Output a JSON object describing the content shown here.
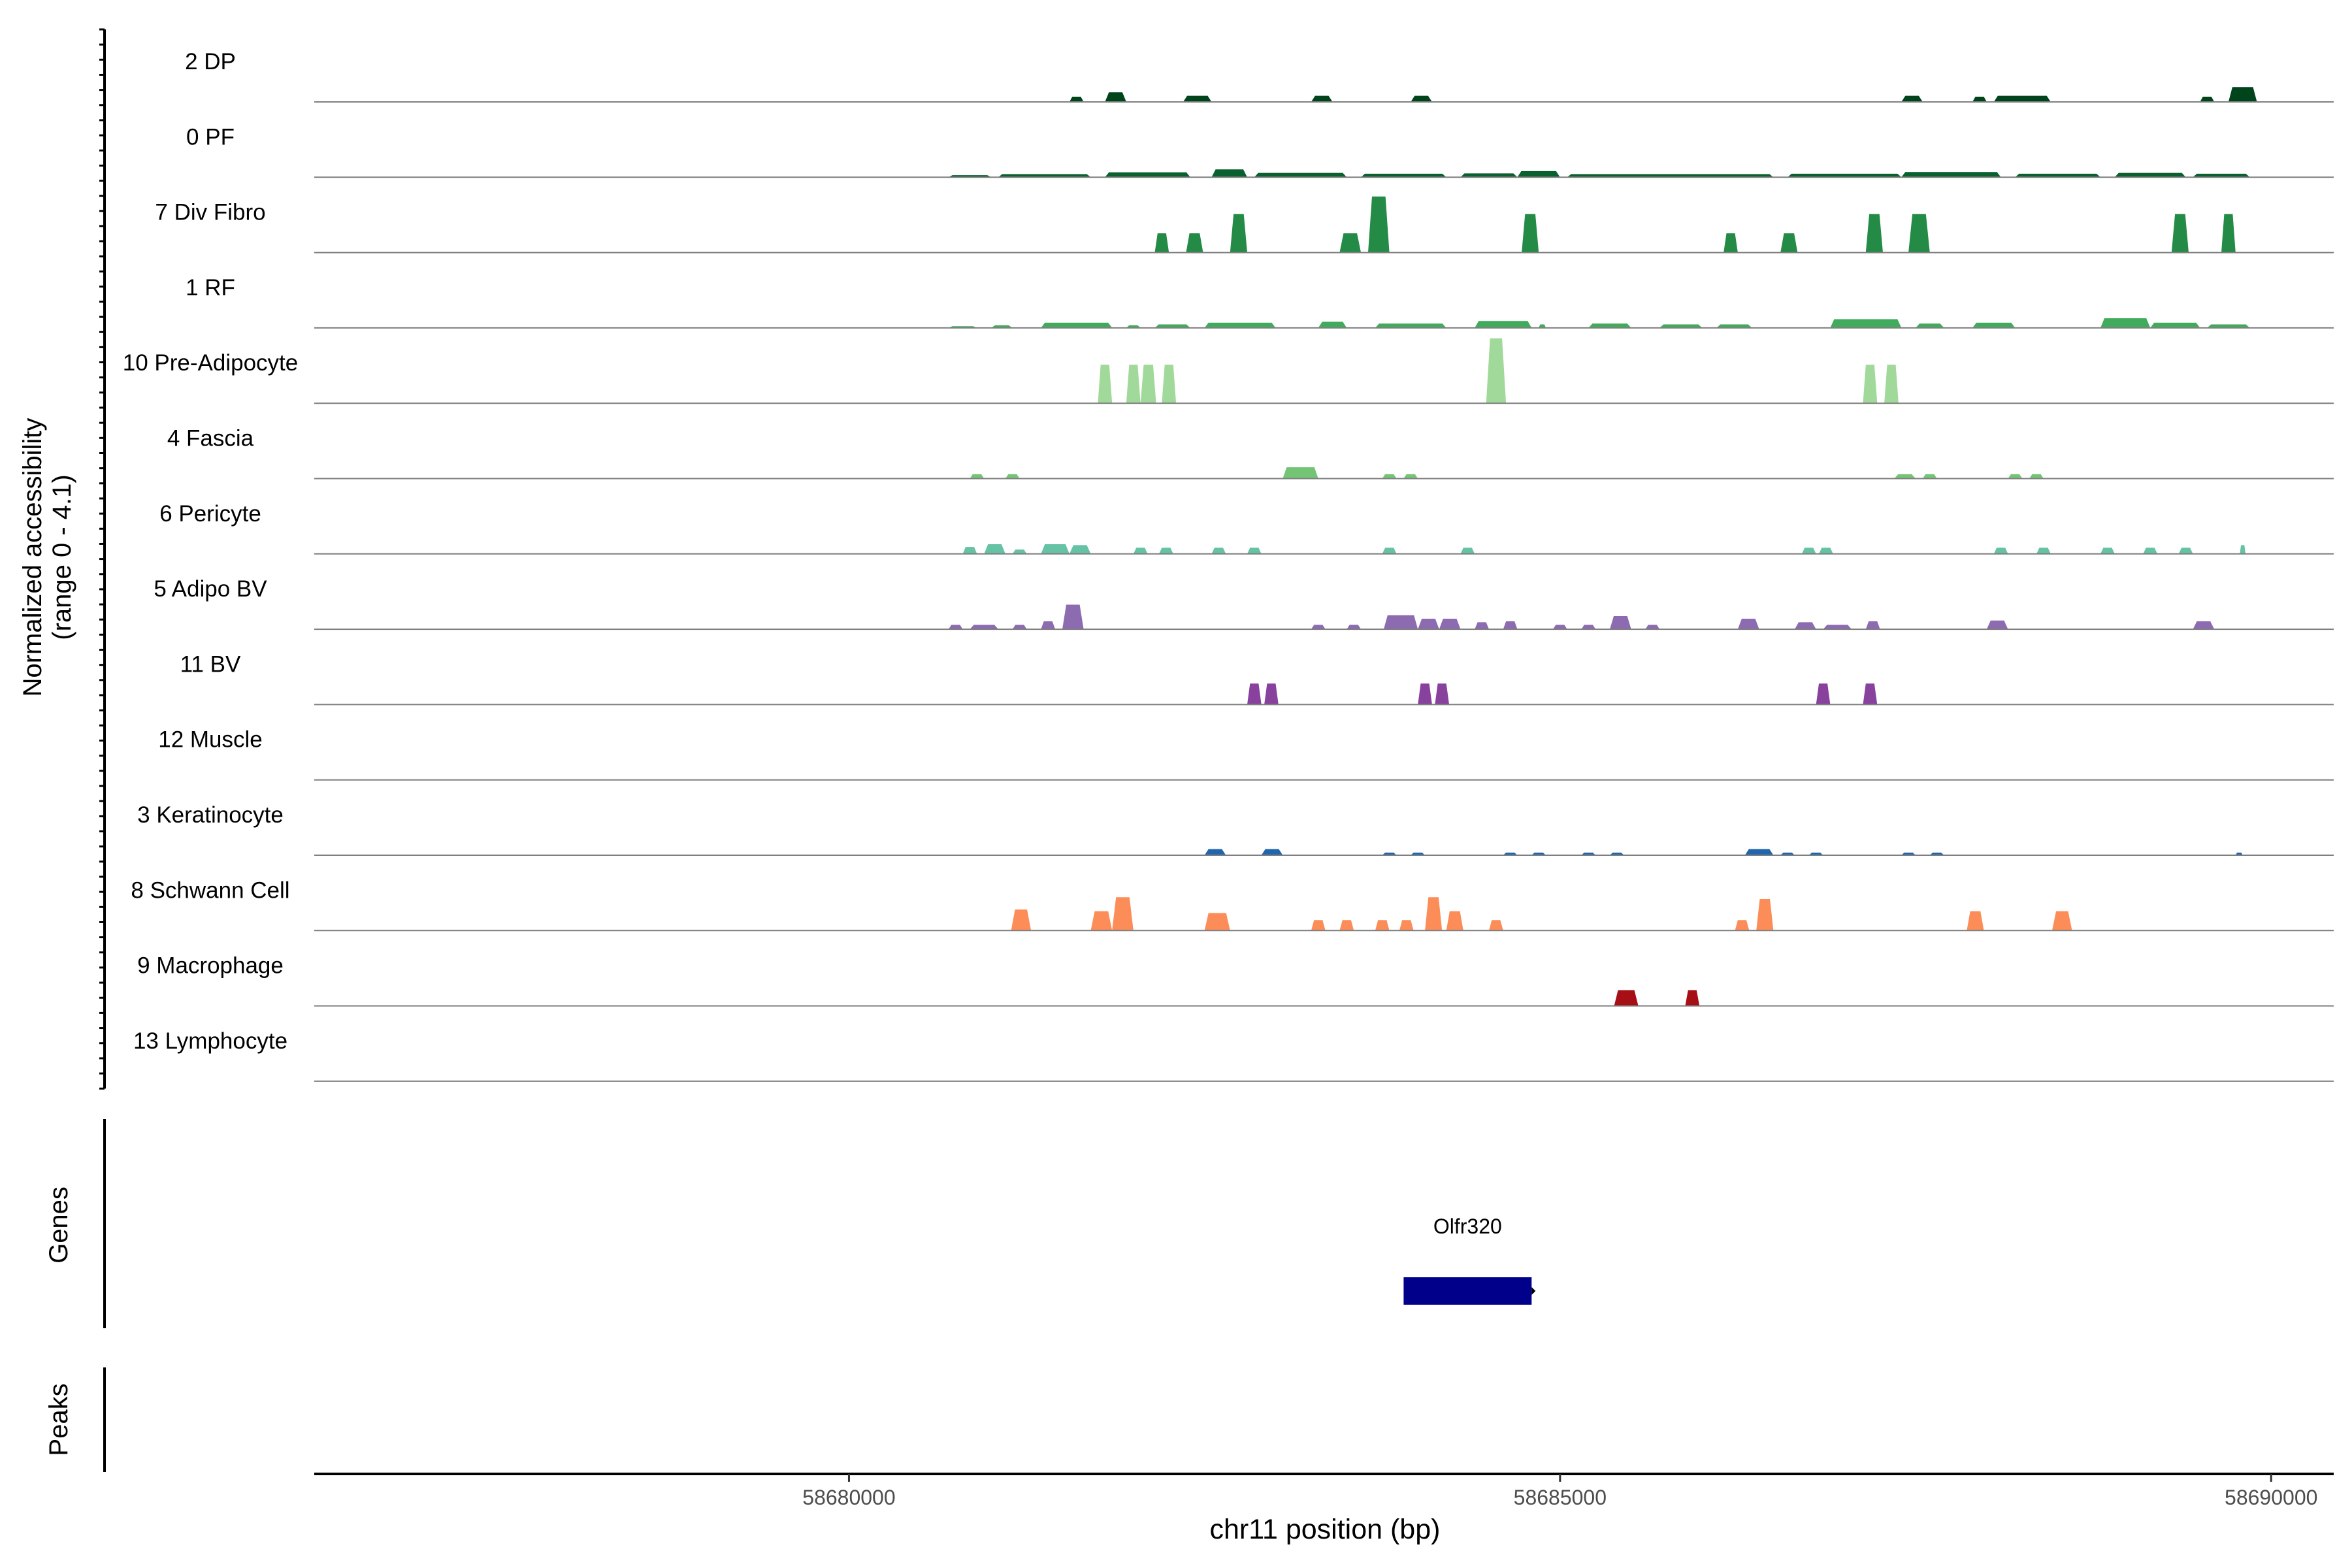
{
  "chart_data": {
    "type": "area",
    "panel_label": "Normalized accessibility",
    "panel_sublabel": "(range 0 - 4.1)",
    "ylim": [
      0,
      4.1
    ],
    "xlabel": "chr11 position (bp)",
    "xlim": [
      58676240,
      58690440
    ],
    "xticks": [
      {
        "value": 58680000,
        "label": "58680000"
      },
      {
        "value": 58685000,
        "label": "58685000"
      },
      {
        "value": 58690000,
        "label": "58690000"
      }
    ],
    "tracks": [
      {
        "name": "2 DP",
        "color": "#00441b",
        "peaks": [
          [
            58681550,
            58681650,
            0.3
          ],
          [
            58681800,
            58681950,
            0.55
          ],
          [
            58682350,
            58682550,
            0.35
          ],
          [
            58683250,
            58683400,
            0.35
          ],
          [
            58683950,
            58684100,
            0.35
          ],
          [
            58687400,
            58687550,
            0.35
          ],
          [
            58687900,
            58688000,
            0.3
          ],
          [
            58688050,
            58688450,
            0.35
          ],
          [
            58689500,
            58689600,
            0.3
          ],
          [
            58689700,
            58689900,
            0.85
          ]
        ]
      },
      {
        "name": "0 PF",
        "color": "#0a6130",
        "peaks": [
          [
            58680700,
            58681000,
            0.12
          ],
          [
            58681050,
            58681700,
            0.18
          ],
          [
            58681800,
            58682400,
            0.28
          ],
          [
            58682550,
            58682800,
            0.45
          ],
          [
            58682850,
            58683500,
            0.25
          ],
          [
            58683600,
            58684200,
            0.2
          ],
          [
            58684300,
            58684700,
            0.22
          ],
          [
            58684700,
            58685000,
            0.35
          ],
          [
            58685050,
            58686500,
            0.18
          ],
          [
            58686600,
            58687400,
            0.2
          ],
          [
            58687400,
            58688100,
            0.3
          ],
          [
            58688200,
            58688800,
            0.2
          ],
          [
            58688900,
            58689400,
            0.25
          ],
          [
            58689450,
            58689850,
            0.2
          ]
        ]
      },
      {
        "name": "7 Div Fibro",
        "color": "#238b45",
        "peaks": [
          [
            58682150,
            58682250,
            1.1
          ],
          [
            58682370,
            58682490,
            1.1
          ],
          [
            58682680,
            58682800,
            2.2
          ],
          [
            58683450,
            58683600,
            1.1
          ],
          [
            58683650,
            58683800,
            3.2
          ],
          [
            58684730,
            58684850,
            2.2
          ],
          [
            58686150,
            58686250,
            1.1
          ],
          [
            58686550,
            58686670,
            1.1
          ],
          [
            58687150,
            58687270,
            2.2
          ],
          [
            58687450,
            58687600,
            2.2
          ],
          [
            58689300,
            58689420,
            2.2
          ],
          [
            58689650,
            58689750,
            2.2
          ]
        ]
      },
      {
        "name": "1 RF",
        "color": "#41ab5d",
        "peaks": [
          [
            58680700,
            58680900,
            0.1
          ],
          [
            58681000,
            58681150,
            0.15
          ],
          [
            58681350,
            58681850,
            0.3
          ],
          [
            58681950,
            58682050,
            0.15
          ],
          [
            58682150,
            58682400,
            0.2
          ],
          [
            58682500,
            58683000,
            0.3
          ],
          [
            58683300,
            58683500,
            0.35
          ],
          [
            58683700,
            58684200,
            0.25
          ],
          [
            58684400,
            58684800,
            0.4
          ],
          [
            58684850,
            58684900,
            0.2
          ],
          [
            58685200,
            58685500,
            0.25
          ],
          [
            58685700,
            58686000,
            0.2
          ],
          [
            58686100,
            58686350,
            0.2
          ],
          [
            58686900,
            58687400,
            0.5
          ],
          [
            58687500,
            58687700,
            0.25
          ],
          [
            58687900,
            58688200,
            0.3
          ],
          [
            58688800,
            58689150,
            0.55
          ],
          [
            58689150,
            58689500,
            0.3
          ],
          [
            58689550,
            58689850,
            0.2
          ]
        ]
      },
      {
        "name": "10 Pre-Adipocyte",
        "color": "#a1d99b",
        "peaks": [
          [
            58681750,
            58681850,
            2.2
          ],
          [
            58681950,
            58682050,
            2.2
          ],
          [
            58682050,
            58682160,
            2.2
          ],
          [
            58682200,
            58682300,
            2.2
          ],
          [
            58684480,
            58684620,
            3.7
          ],
          [
            58687130,
            58687230,
            2.2
          ],
          [
            58687280,
            58687380,
            2.2
          ]
        ]
      },
      {
        "name": "4 Fascia",
        "color": "#74c476",
        "peaks": [
          [
            58680850,
            58680950,
            0.25
          ],
          [
            58681100,
            58681200,
            0.25
          ],
          [
            58683050,
            58683300,
            0.65
          ],
          [
            58683750,
            58683850,
            0.25
          ],
          [
            58683900,
            58684000,
            0.25
          ],
          [
            58687350,
            58687500,
            0.25
          ],
          [
            58687550,
            58687650,
            0.25
          ],
          [
            58688150,
            58688250,
            0.25
          ],
          [
            58688300,
            58688400,
            0.25
          ]
        ]
      },
      {
        "name": "6 Pericyte",
        "color": "#66c2a4",
        "peaks": [
          [
            58680800,
            58680900,
            0.4
          ],
          [
            58680950,
            58681100,
            0.55
          ],
          [
            58681150,
            58681250,
            0.25
          ],
          [
            58681350,
            58681550,
            0.55
          ],
          [
            58681550,
            58681700,
            0.5
          ],
          [
            58682000,
            58682100,
            0.35
          ],
          [
            58682180,
            58682280,
            0.35
          ],
          [
            58682550,
            58682650,
            0.35
          ],
          [
            58682800,
            58682900,
            0.35
          ],
          [
            58683750,
            58683850,
            0.35
          ],
          [
            58684300,
            58684400,
            0.35
          ],
          [
            58686700,
            58686800,
            0.35
          ],
          [
            58686820,
            58686920,
            0.35
          ],
          [
            58688050,
            58688150,
            0.35
          ],
          [
            58688350,
            58688450,
            0.35
          ],
          [
            58688800,
            58688900,
            0.35
          ],
          [
            58689100,
            58689200,
            0.35
          ],
          [
            58689350,
            58689450,
            0.35
          ],
          [
            58689780,
            58689820,
            0.5
          ]
        ]
      },
      {
        "name": "5 Adipo BV",
        "color": "#8c6bb1",
        "peaks": [
          [
            58680700,
            58680800,
            0.25
          ],
          [
            58680850,
            58681050,
            0.25
          ],
          [
            58681150,
            58681250,
            0.25
          ],
          [
            58681350,
            58681450,
            0.45
          ],
          [
            58681500,
            58681650,
            1.4
          ],
          [
            58683250,
            58683350,
            0.25
          ],
          [
            58683500,
            58683600,
            0.25
          ],
          [
            58683760,
            58684000,
            0.8
          ],
          [
            58684000,
            58684150,
            0.6
          ],
          [
            58684150,
            58684300,
            0.6
          ],
          [
            58684400,
            58684500,
            0.4
          ],
          [
            58684600,
            58684700,
            0.45
          ],
          [
            58684950,
            58685050,
            0.25
          ],
          [
            58685150,
            58685250,
            0.25
          ],
          [
            58685350,
            58685500,
            0.75
          ],
          [
            58685600,
            58685700,
            0.25
          ],
          [
            58686250,
            58686400,
            0.6
          ],
          [
            58686650,
            58686800,
            0.4
          ],
          [
            58686850,
            58687050,
            0.25
          ],
          [
            58687150,
            58687250,
            0.45
          ],
          [
            58688000,
            58688150,
            0.5
          ],
          [
            58689450,
            58689600,
            0.45
          ]
        ]
      },
      {
        "name": "11 BV",
        "color": "#88419d",
        "peaks": [
          [
            58682800,
            58682900,
            1.2
          ],
          [
            58682920,
            58683020,
            1.2
          ],
          [
            58684000,
            58684100,
            1.2
          ],
          [
            58684120,
            58684220,
            1.2
          ],
          [
            58686800,
            58686900,
            1.2
          ],
          [
            58687130,
            58687230,
            1.2
          ]
        ]
      },
      {
        "name": "12 Muscle",
        "color": "#ae017e",
        "peaks": []
      },
      {
        "name": "3 Keratinocyte",
        "color": "#2166ac",
        "peaks": [
          [
            58682500,
            58682650,
            0.35
          ],
          [
            58682900,
            58683050,
            0.35
          ],
          [
            58683750,
            58683850,
            0.15
          ],
          [
            58683950,
            58684050,
            0.15
          ],
          [
            58684600,
            58684700,
            0.15
          ],
          [
            58684800,
            58684900,
            0.15
          ],
          [
            58685150,
            58685250,
            0.15
          ],
          [
            58685350,
            58685450,
            0.15
          ],
          [
            58686300,
            58686500,
            0.35
          ],
          [
            58686550,
            58686650,
            0.15
          ],
          [
            58686750,
            58686850,
            0.15
          ],
          [
            58687400,
            58687500,
            0.15
          ],
          [
            58687600,
            58687700,
            0.15
          ],
          [
            58689750,
            58689800,
            0.15
          ]
        ]
      },
      {
        "name": "8 Schwann Cell",
        "color": "#fc8d59",
        "peaks": [
          [
            58681140,
            58681280,
            1.2
          ],
          [
            58681700,
            58681850,
            1.1
          ],
          [
            58681850,
            58682000,
            1.9
          ],
          [
            58682500,
            58682680,
            1.0
          ],
          [
            58683250,
            58683350,
            0.6
          ],
          [
            58683450,
            58683550,
            0.6
          ],
          [
            58683700,
            58683800,
            0.6
          ],
          [
            58683870,
            58683970,
            0.6
          ],
          [
            58684050,
            58684170,
            1.9
          ],
          [
            58684200,
            58684320,
            1.1
          ],
          [
            58684500,
            58684600,
            0.6
          ],
          [
            58686230,
            58686330,
            0.6
          ],
          [
            58686380,
            58686500,
            1.8
          ],
          [
            58687860,
            58687980,
            1.1
          ],
          [
            58688460,
            58688600,
            1.1
          ]
        ]
      },
      {
        "name": "9 Macrophage",
        "color": "#a50f15",
        "peaks": [
          [
            58685380,
            58685550,
            0.9
          ],
          [
            58685880,
            58685980,
            0.9
          ]
        ]
      },
      {
        "name": "13 Lymphocyte",
        "color": "#67000d",
        "peaks": []
      }
    ],
    "genes_label": "Genes",
    "peaks_label": "Peaks",
    "genes": [
      {
        "name": "Olfr320",
        "start": 58683900,
        "end": 58684800,
        "strand": "+",
        "color": "#00008b"
      }
    ]
  }
}
